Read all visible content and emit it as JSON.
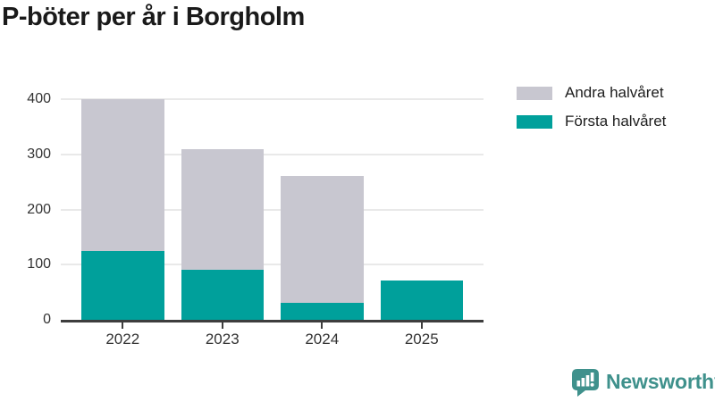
{
  "title": "P-böter per år i Borgholm",
  "colors": {
    "first_half": "#00A09B",
    "second_half": "#C8C7D0",
    "gridline": "#E9E9E9",
    "axis_line": "#3D3D3D",
    "title_text": "#1A1A1A",
    "axis_text": "#333333",
    "legend_text": "#1D1D1D",
    "logo": "#3F918C",
    "background": "#FFFFFF"
  },
  "legend": {
    "items": [
      {
        "label": "Andra halvåret",
        "color_key": "second_half"
      },
      {
        "label": "Första halvåret",
        "color_key": "first_half"
      }
    ]
  },
  "chart_data": {
    "type": "bar",
    "stacked": true,
    "title": "P-böter per år i Borgholm",
    "categories": [
      "2022",
      "2023",
      "2024",
      "2025"
    ],
    "series": [
      {
        "name": "Första halvåret",
        "key": "forsta-halvaret",
        "color": "#00A09B",
        "values": [
          125,
          90,
          31,
          71
        ]
      },
      {
        "name": "Andra halvåret",
        "key": "andra-halvaret",
        "color": "#C8C7D0",
        "values": [
          275,
          220,
          230,
          0
        ]
      }
    ],
    "totals": [
      400,
      310,
      261,
      71
    ],
    "xlabel": "",
    "ylabel": "",
    "ylim": [
      0,
      400
    ],
    "yticks": [
      0,
      100,
      200,
      300,
      400
    ],
    "grid": true,
    "legend_position": "top-right"
  },
  "branding": {
    "name": "Newsworthy",
    "icon": "newsworthy-logo-icon"
  }
}
